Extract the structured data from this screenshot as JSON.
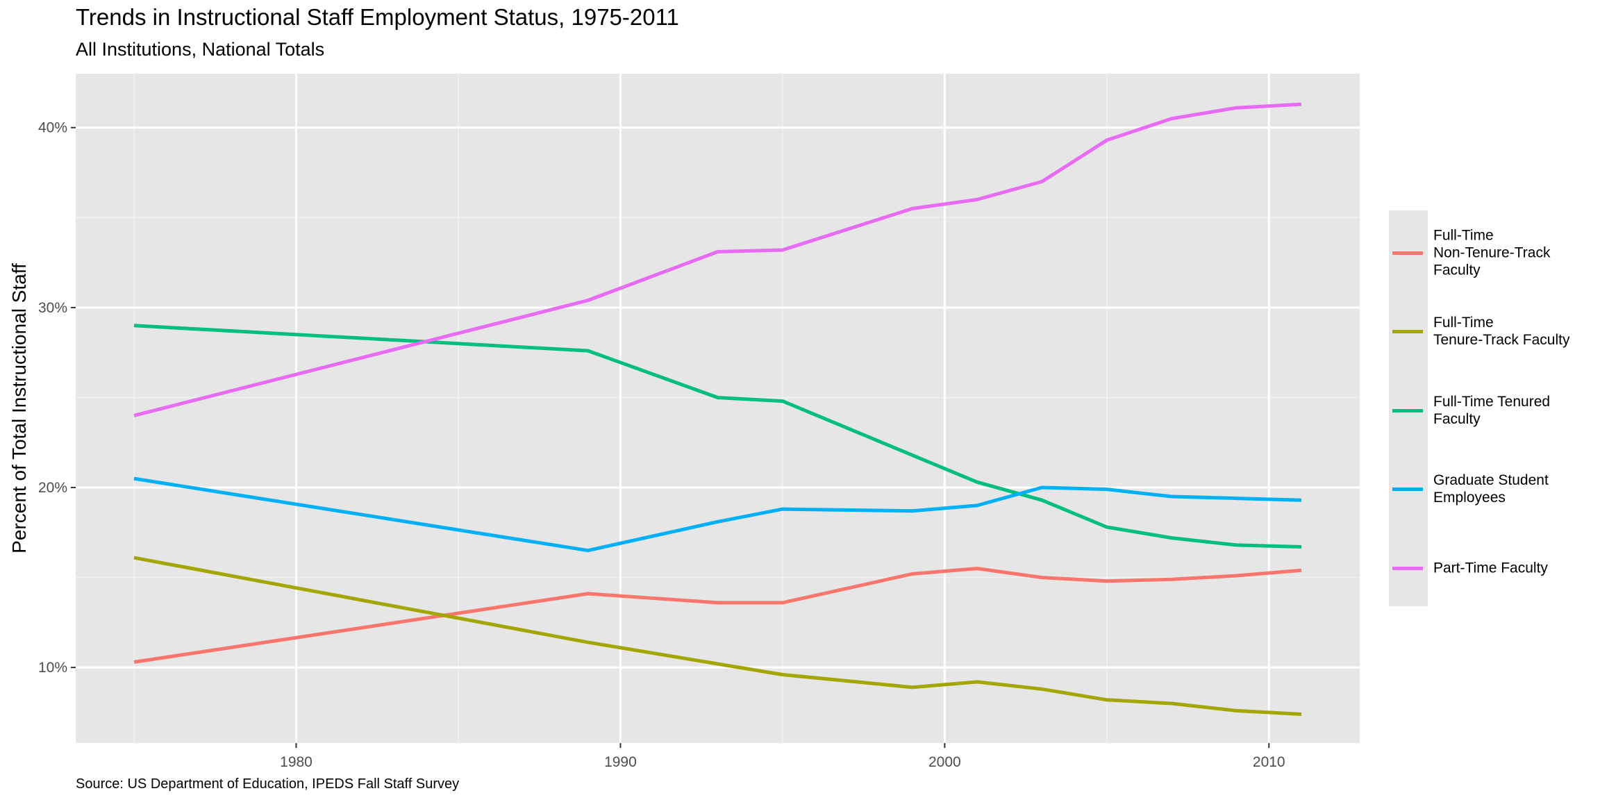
{
  "chart_data": {
    "type": "line",
    "title": "Trends in Instructional Staff Employment Status, 1975-2011",
    "subtitle": "All Institutions, National Totals",
    "caption": "Source: US Department of Education, IPEDS Fall Staff Survey",
    "xlabel": "",
    "ylabel": "Percent of Total Instructional Staff",
    "xlim": [
      1973.2,
      2012.8
    ],
    "ylim": [
      5.8,
      43
    ],
    "x_ticks": [
      1980,
      1990,
      2000,
      2010
    ],
    "y_ticks": [
      10,
      20,
      30,
      40
    ],
    "y_tick_suffix": "%",
    "grid": true,
    "legend_position": "right",
    "x": [
      1975,
      1989,
      1993,
      1995,
      1999,
      2001,
      2003,
      2005,
      2007,
      2009,
      2011
    ],
    "series": [
      {
        "name": "Full-Time\nNon-Tenure-Track\nFaculty",
        "color": "#F8766D",
        "values": [
          10.3,
          14.1,
          13.6,
          13.6,
          15.2,
          15.5,
          15.0,
          14.8,
          14.9,
          15.1,
          15.4
        ]
      },
      {
        "name": "Full-Time\nTenure-Track Faculty",
        "color": "#A3A500",
        "values": [
          16.1,
          11.4,
          10.2,
          9.6,
          8.9,
          9.2,
          8.8,
          8.2,
          8.0,
          7.6,
          7.4
        ]
      },
      {
        "name": "Full-Time Tenured\nFaculty",
        "color": "#00BF7D",
        "values": [
          29.0,
          27.6,
          25.0,
          24.8,
          21.8,
          20.3,
          19.3,
          17.8,
          17.2,
          16.8,
          16.7
        ]
      },
      {
        "name": "Graduate Student\nEmployees",
        "color": "#00B0F6",
        "values": [
          20.5,
          16.5,
          18.1,
          18.8,
          18.7,
          19.0,
          20.0,
          19.9,
          19.5,
          19.4,
          19.3
        ]
      },
      {
        "name": "Part-Time Faculty",
        "color": "#E76BF3",
        "values": [
          24.0,
          30.4,
          33.1,
          33.2,
          35.5,
          36.0,
          37.0,
          39.3,
          40.5,
          41.1,
          41.3
        ]
      }
    ]
  }
}
